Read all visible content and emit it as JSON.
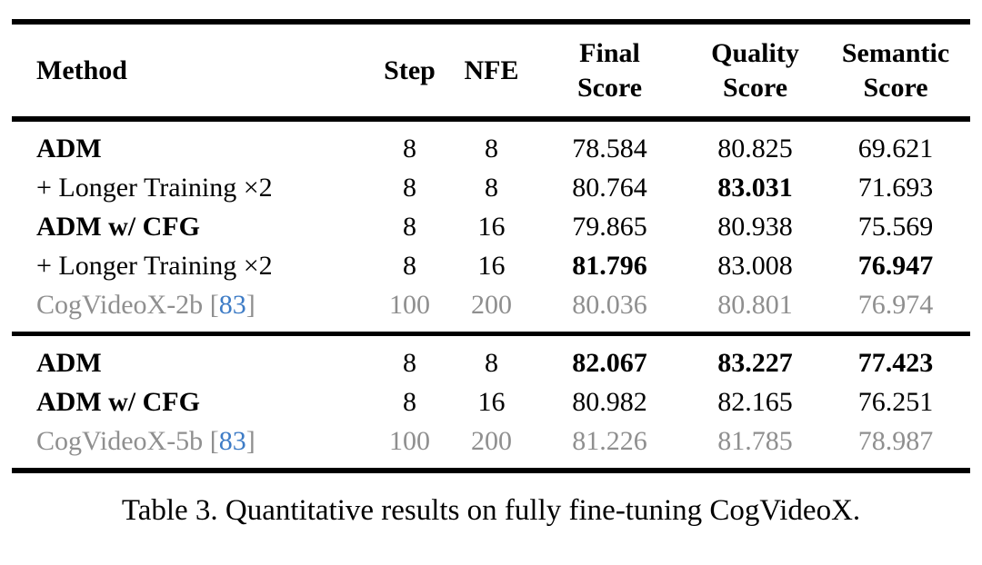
{
  "colors": {
    "text": "#000000",
    "muted_gray": "#8f8f8f",
    "citation_blue": "#3e7cc6",
    "rule": "#000000"
  },
  "caption": "Table 3. Quantitative results on fully fine-tuning CogVideoX.",
  "table": {
    "headers": {
      "method": "Method",
      "step": "Step",
      "nfe": "NFE",
      "final": "Final\nScore",
      "quality": "Quality\nScore",
      "semantic": "Semantic\nScore"
    },
    "sections": [
      {
        "rows": [
          {
            "method": "ADM",
            "step": "8",
            "nfe": "8",
            "final": "78.584",
            "quality": "80.825",
            "semantic": "69.621"
          },
          {
            "method": "+ Longer Training ×2",
            "step": "8",
            "nfe": "8",
            "final": "80.764",
            "quality": "83.031",
            "semantic": "71.693"
          },
          {
            "method": "ADM w/ CFG",
            "step": "8",
            "nfe": "16",
            "final": "79.865",
            "quality": "80.938",
            "semantic": "75.569"
          },
          {
            "method": "+ Longer Training ×2",
            "step": "8",
            "nfe": "16",
            "final": "81.796",
            "quality": "83.008",
            "semantic": "76.947"
          },
          {
            "method": "CogVideoX-2b",
            "cite_open": "[",
            "cite": "83",
            "cite_close": "]",
            "step": "100",
            "nfe": "200",
            "final": "80.036",
            "quality": "80.801",
            "semantic": "76.974"
          }
        ]
      },
      {
        "rows": [
          {
            "method": "ADM",
            "step": "8",
            "nfe": "8",
            "final": "82.067",
            "quality": "83.227",
            "semantic": "77.423"
          },
          {
            "method": "ADM w/ CFG",
            "step": "8",
            "nfe": "16",
            "final": "80.982",
            "quality": "82.165",
            "semantic": "76.251"
          },
          {
            "method": "CogVideoX-5b",
            "cite_open": "[",
            "cite": "83",
            "cite_close": "]",
            "step": "100",
            "nfe": "200",
            "final": "81.226",
            "quality": "81.785",
            "semantic": "78.987"
          }
        ]
      }
    ]
  }
}
